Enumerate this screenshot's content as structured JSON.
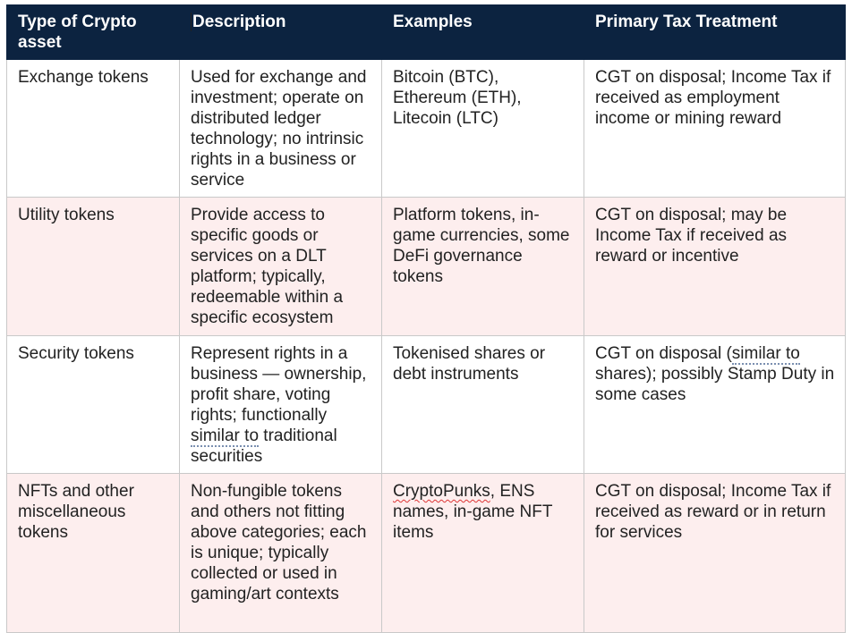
{
  "table": {
    "headers": [
      "Type of Crypto asset",
      "Description",
      "Examples",
      "Primary Tax Treatment"
    ],
    "rows": [
      {
        "type": "Exchange tokens",
        "description": "Used for exchange and investment; operate on distributed ledger technology; no intrinsic rights in a business or service",
        "examples": "Bitcoin (BTC), Ethereum (ETH), Litecoin (LTC)",
        "tax": "CGT on disposal; Income Tax if received as employment income or mining reward"
      },
      {
        "type": "Utility tokens",
        "description": "Provide access to specific goods or services on a DLT platform; typically, redeemable within a specific ecosystem",
        "examples": "Platform tokens, in-game currencies, some DeFi governance tokens",
        "tax": "CGT on disposal; may be Income Tax if received as reward or incentive"
      },
      {
        "type": "Security tokens",
        "description_pre": "Represent rights in a business — ownership, profit share, voting rights; functionally ",
        "description_mark": "similar to",
        "description_post": " traditional securities",
        "examples": "Tokenised shares or debt instruments",
        "tax_pre": "CGT on disposal (",
        "tax_mark": "similar to",
        "tax_post": " shares); possibly Stamp Duty in some cases"
      },
      {
        "type": "NFTs and other miscellaneous tokens",
        "description": "Non-fungible tokens and others not fitting above categories; each is unique; typically collected or used in gaming/art contexts",
        "examples_mark": "CryptoPunks",
        "examples_post": ", ENS names, in-game NFT items",
        "tax": "CGT on disposal; Income Tax if received as reward or in return for services"
      }
    ]
  },
  "colors": {
    "header_bg": "#0c2340",
    "header_text": "#ffffff",
    "row_alt_bg": "#fdeeee",
    "border": "#c9c9c9"
  }
}
